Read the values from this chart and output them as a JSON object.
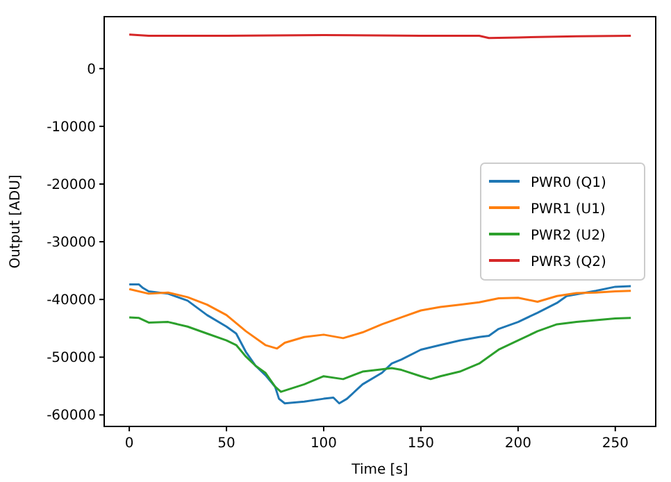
{
  "chart_data": {
    "type": "line",
    "xlabel": "Time [s]",
    "ylabel": "Output [ADU]",
    "xlim": [
      -12.9,
      270.8
    ],
    "ylim": [
      -62000,
      9000
    ],
    "xticks": [
      0,
      50,
      100,
      150,
      200,
      250
    ],
    "yticks": [
      -60000,
      -50000,
      -40000,
      -30000,
      -20000,
      -10000,
      0
    ],
    "grid": false,
    "legend": "center right",
    "marker": "none",
    "line_style": "solid",
    "series": [
      {
        "name": "PWR0 (Q1)",
        "color": "#1f77b4",
        "x": [
          0,
          5,
          7,
          10,
          20,
          30,
          40,
          50,
          55,
          60,
          65,
          70,
          75,
          77,
          80,
          90,
          100,
          105,
          108,
          112,
          120,
          130,
          135,
          140,
          150,
          160,
          170,
          180,
          185,
          190,
          200,
          210,
          220,
          225,
          240,
          250,
          258
        ],
        "values": [
          -37400,
          -37400,
          -38000,
          -38600,
          -39000,
          -40200,
          -42700,
          -44700,
          -45900,
          -49100,
          -51500,
          -53100,
          -55100,
          -57200,
          -58000,
          -57700,
          -57200,
          -57000,
          -58000,
          -57200,
          -54700,
          -52700,
          -51100,
          -50400,
          -48700,
          -47900,
          -47100,
          -46500,
          -46300,
          -45100,
          -43900,
          -42300,
          -40600,
          -39400,
          -38500,
          -37800,
          -37700
        ]
      },
      {
        "name": "PWR1 (U1)",
        "color": "#ff7f0e",
        "x": [
          0,
          10,
          20,
          30,
          40,
          50,
          60,
          70,
          76,
          80,
          90,
          100,
          110,
          120,
          130,
          140,
          150,
          160,
          170,
          180,
          190,
          200,
          210,
          220,
          230,
          240,
          250,
          258
        ],
        "values": [
          -38200,
          -39000,
          -38800,
          -39600,
          -40900,
          -42700,
          -45500,
          -47900,
          -48500,
          -47500,
          -46500,
          -46100,
          -46700,
          -45700,
          -44300,
          -43100,
          -41900,
          -41300,
          -40900,
          -40500,
          -39800,
          -39700,
          -40400,
          -39400,
          -38900,
          -38800,
          -38600,
          -38500
        ]
      },
      {
        "name": "PWR2 (U2)",
        "color": "#2ca02c",
        "x": [
          0,
          5,
          10,
          20,
          30,
          40,
          50,
          55,
          60,
          65,
          70,
          75,
          78,
          90,
          100,
          110,
          120,
          130,
          135,
          140,
          150,
          155,
          160,
          170,
          180,
          190,
          200,
          210,
          220,
          230,
          240,
          250,
          258
        ],
        "values": [
          -43100,
          -43200,
          -44000,
          -43900,
          -44700,
          -45900,
          -47100,
          -47900,
          -49900,
          -51500,
          -52700,
          -55100,
          -56000,
          -54700,
          -53300,
          -53800,
          -52500,
          -52100,
          -51900,
          -52200,
          -53300,
          -53800,
          -53300,
          -52500,
          -51100,
          -48700,
          -47100,
          -45500,
          -44300,
          -43900,
          -43600,
          -43300,
          -43200
        ]
      },
      {
        "name": "PWR3 (Q2)",
        "color": "#d62728",
        "x": [
          0,
          10,
          50,
          100,
          150,
          180,
          185,
          200,
          230,
          258
        ],
        "values": [
          5900,
          5700,
          5700,
          5800,
          5700,
          5700,
          5300,
          5400,
          5600,
          5700
        ]
      }
    ]
  }
}
